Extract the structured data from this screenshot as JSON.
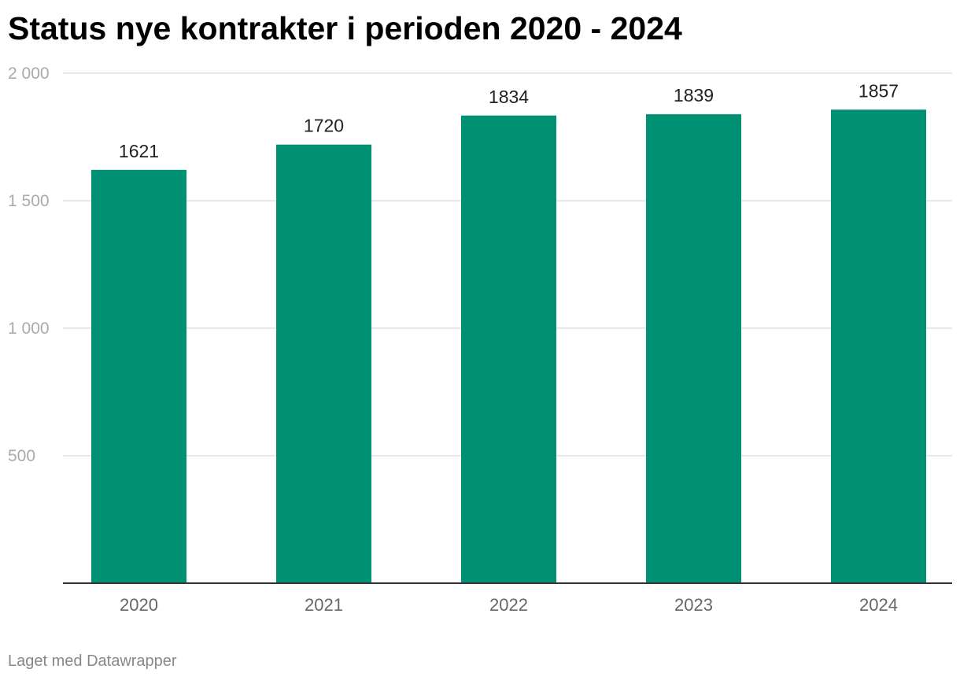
{
  "chart_data": {
    "type": "bar",
    "title": "Status nye kontrakter i perioden 2020 - 2024",
    "categories": [
      "2020",
      "2021",
      "2022",
      "2023",
      "2024"
    ],
    "values": [
      1621,
      1720,
      1834,
      1839,
      1857
    ],
    "ylim": [
      0,
      2000
    ],
    "y_ticks": [
      500,
      1000,
      1500,
      2000
    ],
    "y_tick_labels": [
      "500",
      "1 000",
      "1 500",
      "2 000"
    ],
    "xlabel": "",
    "ylabel": "",
    "grid": true,
    "bar_color": "#009073",
    "data_labels": true
  },
  "footer": {
    "credit": "Laget med Datawrapper"
  }
}
